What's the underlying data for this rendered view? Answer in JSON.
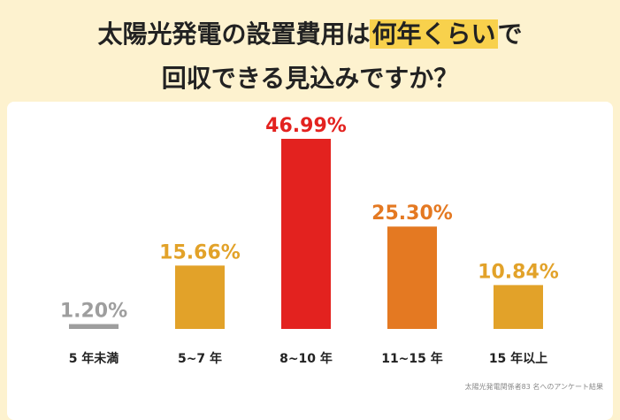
{
  "chart_data": {
    "type": "bar",
    "title": [
      "太陽光発電の設置費用は",
      "何年くらい",
      "で",
      "回収できる見込みですか？"
    ],
    "title_highlight": 1,
    "categories": [
      "5 年未満",
      "5~7 年",
      "8~10 年",
      "11~15 年",
      "15 年以上"
    ],
    "values": [
      1.2,
      15.66,
      46.99,
      25.3,
      10.84
    ],
    "value_labels": [
      "1.20%",
      "15.66%",
      "46.99%",
      "25.30%",
      "10.84%"
    ],
    "colors": [
      "#9e9e9e",
      "#e2a229",
      "#e3221f",
      "#e47922",
      "#e2a229"
    ],
    "note": "太陽光発電関係者83 名へのアンケート結果"
  }
}
